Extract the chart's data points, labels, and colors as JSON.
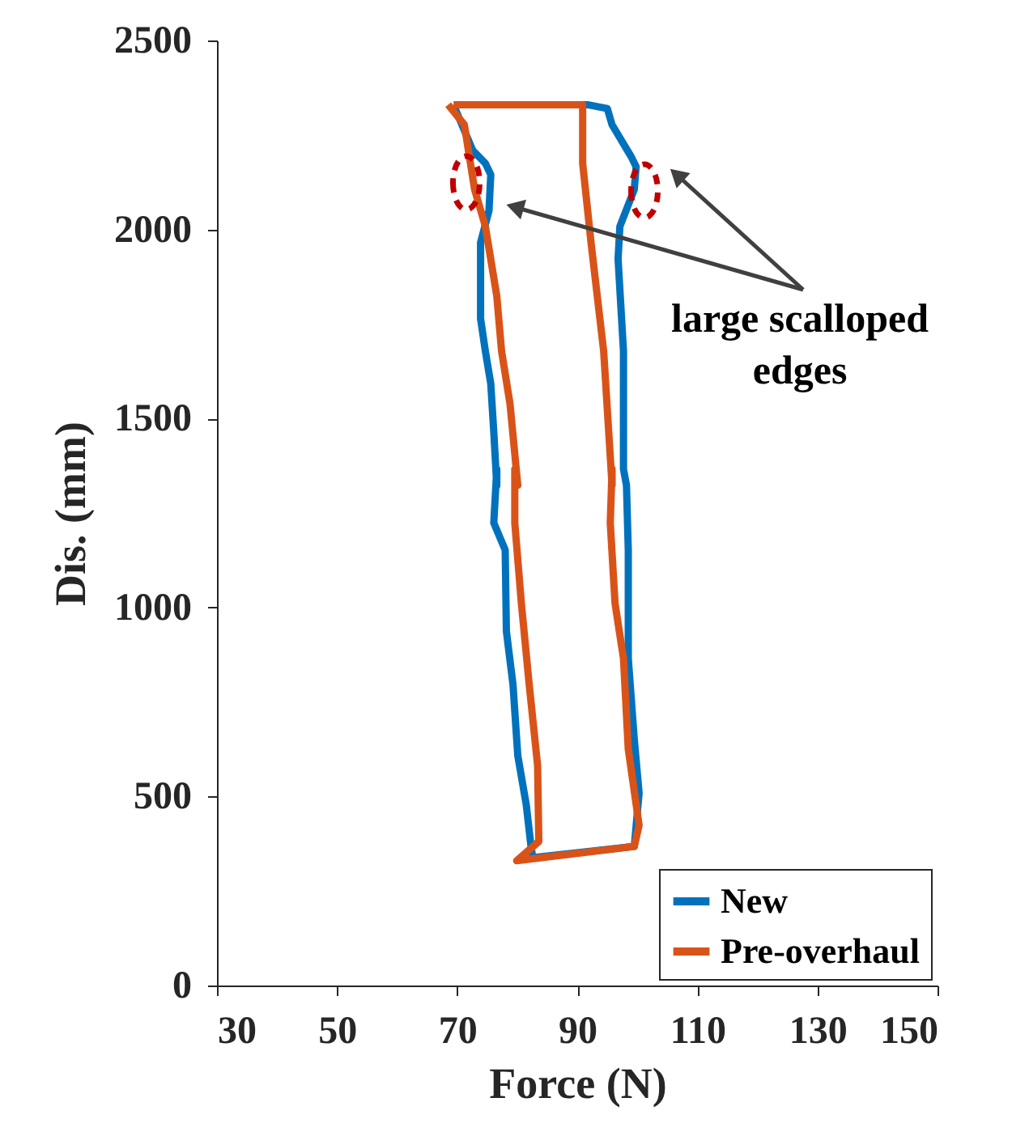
{
  "chart_data": {
    "type": "line",
    "xlabel": "Force (N)",
    "ylabel": "Dis. (mm)",
    "xlim": [
      30,
      150
    ],
    "xticks": [
      30,
      50,
      70,
      90,
      110,
      130,
      150
    ],
    "ylim": [
      0,
      2500
    ],
    "yticks": [
      0,
      500,
      1000,
      1500,
      2000,
      2500
    ],
    "grid": false,
    "legend": "bottom right",
    "marker": "none",
    "line_style": "solid",
    "annotations": [
      "large scalloped edges"
    ],
    "series": [
      {
        "name": "New",
        "color": "#0072bd",
        "x": [
          69.4,
          72.6,
          74.7,
          75.6,
          75.3,
          73.9,
          73.9,
          74.7,
          75.6,
          76.1,
          76.6,
          76.6,
          76.1,
          78.0,
          78.2,
          79.3,
          80.1,
          81.5,
          82.3,
          82.6,
          99.5,
          100.3,
          99.5,
          98.5,
          98.5,
          98.2,
          97.7,
          97.7,
          96.8,
          97.1,
          99.5,
          99.8,
          99.0,
          95.8,
          95.0,
          91.7,
          70.3
        ],
        "values": [
          2330,
          2209,
          2175,
          2145,
          2050,
          1965,
          1764,
          1678,
          1592,
          1464,
          1323,
          1366,
          1224,
          1152,
          937,
          796,
          608,
          479,
          368,
          338,
          368,
          509,
          651,
          865,
          1152,
          1323,
          1366,
          1678,
          1922,
          2008,
          2106,
          2166,
          2192,
          2277,
          2320,
          2330,
          2330
        ]
      },
      {
        "name": "Pre-overhaul",
        "color": "#d95319",
        "x": [
          68.5,
          71.2,
          72.9,
          74.7,
          76.6,
          77.4,
          78.8,
          80.1,
          79.6,
          79.6,
          80.7,
          82.0,
          83.4,
          83.6,
          79.9,
          99.5,
          100.3,
          98.5,
          97.7,
          96.3,
          95.5,
          95.8,
          95.8,
          94.4,
          92.3,
          90.9,
          90.9,
          69.4
        ],
        "values": [
          2330,
          2277,
          2106,
          2008,
          1824,
          1678,
          1539,
          1323,
          1366,
          1224,
          1010,
          796,
          582,
          381,
          330,
          368,
          424,
          625,
          865,
          1010,
          1224,
          1366,
          1323,
          1678,
          1965,
          2175,
          2330,
          2330
        ]
      }
    ]
  }
}
